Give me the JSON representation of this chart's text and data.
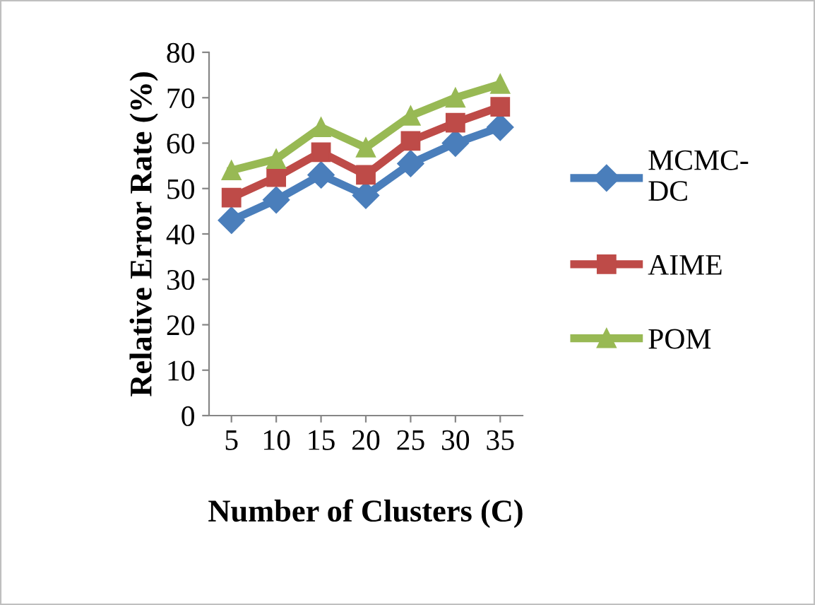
{
  "chart_data": {
    "type": "line",
    "xlabel": "Number of Clusters (C)",
    "ylabel": "Relative Error Rate (%)",
    "categories": [
      "5",
      "10",
      "15",
      "20",
      "25",
      "30",
      "35"
    ],
    "series": [
      {
        "name": "MCMC-\nDC",
        "color": "#4a7ebb",
        "marker": "diamond",
        "values": [
          43,
          47.5,
          53,
          48.5,
          55.5,
          60,
          63.5
        ]
      },
      {
        "name": "AIME",
        "color": "#be4b48",
        "marker": "square",
        "values": [
          48,
          52.5,
          58,
          53,
          60.5,
          64.5,
          68
        ]
      },
      {
        "name": "POM",
        "color": "#98b954",
        "marker": "triangle",
        "values": [
          54,
          56.5,
          63.5,
          59,
          66,
          70,
          73
        ]
      }
    ],
    "ylim": [
      0,
      80
    ],
    "yticks": [
      0,
      10,
      20,
      30,
      40,
      50,
      60,
      70,
      80
    ],
    "grid": false,
    "legend": "right",
    "line_style": "solid"
  }
}
